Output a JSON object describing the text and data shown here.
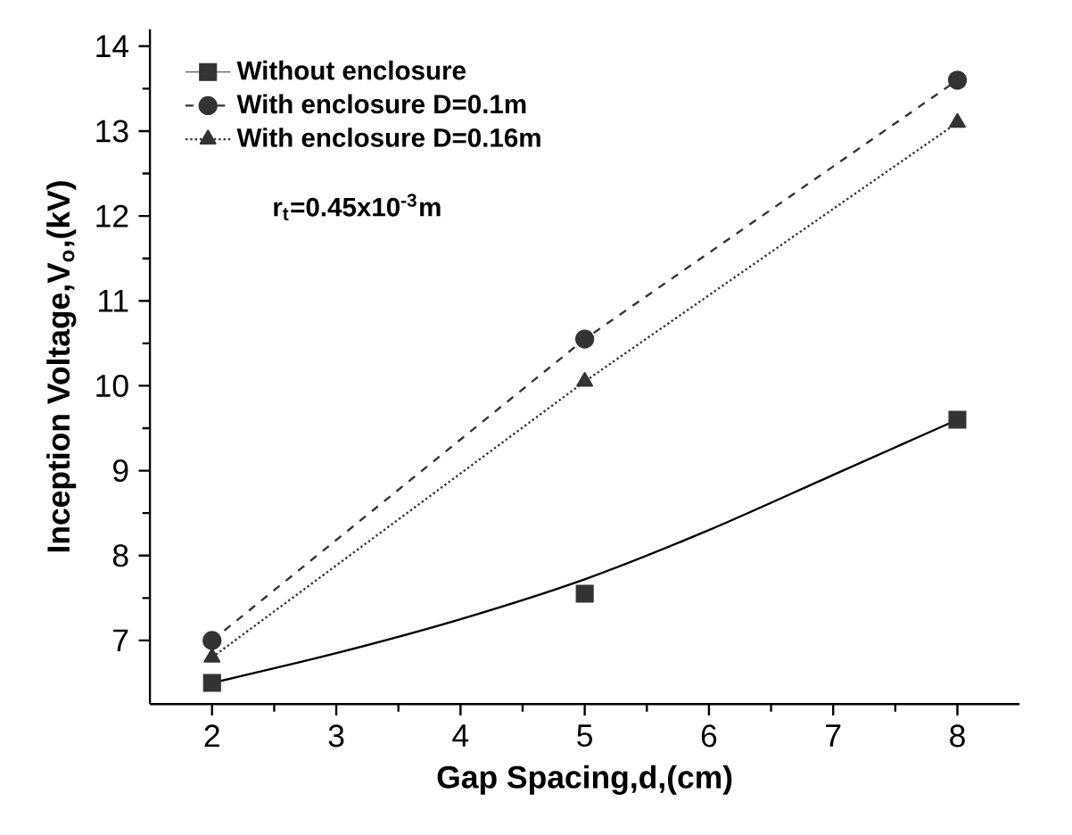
{
  "chart_data": {
    "type": "line",
    "xlabel": "Gap Spacing,d,(cm)",
    "ylabel": "Inception Voltage,V$_{o}$,(kV)",
    "xlim": [
      1.5,
      8.5
    ],
    "ylim": [
      6.25,
      14.2
    ],
    "xticks": [
      2,
      3,
      4,
      5,
      6,
      7,
      8
    ],
    "yticks": [
      7,
      8,
      9,
      10,
      11,
      12,
      13,
      14
    ],
    "x": [
      2,
      5,
      8
    ],
    "series": [
      {
        "name": "Without enclosure",
        "type": "scatter",
        "marker": "square",
        "color": "#333333",
        "values": [
          6.5,
          7.55,
          9.6
        ],
        "line_style": "solid"
      },
      {
        "name": "With enclosure D=0.1m",
        "marker": "circle",
        "line_style": "dashed",
        "color": "#333333",
        "values": [
          7.0,
          10.55,
          13.6
        ]
      },
      {
        "name": "With enclosure D=0.16m",
        "marker": "triangle",
        "line_style": "dotted",
        "color": "#333333",
        "values": [
          6.8,
          10.05,
          13.1
        ]
      },
      {
        "type": "line",
        "marker": "none",
        "line_style": "solid",
        "color": "#000000",
        "x": [
          2,
          3,
          4,
          5,
          6,
          7,
          8
        ],
        "values": [
          6.5,
          6.85,
          7.25,
          7.72,
          8.3,
          8.95,
          9.6
        ]
      }
    ],
    "annotations": [
      "r$_{t}$=0.45x10$^{-3}$m"
    ],
    "legend": "top left",
    "grid": false
  }
}
